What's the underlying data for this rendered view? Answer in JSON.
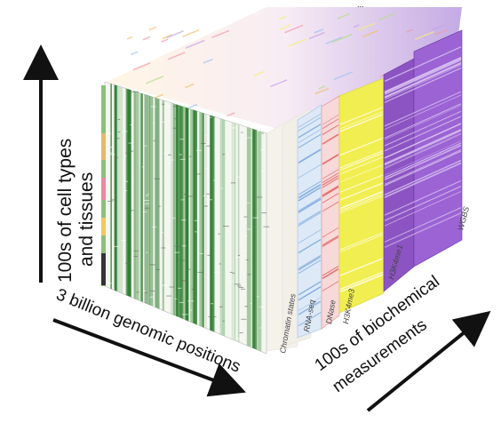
{
  "header": {
    "fragment": "..."
  },
  "axes": {
    "vertical_line1": "100s of cell types",
    "vertical_line2": "and tissues",
    "horizontal": "3 billion genomic positions",
    "depth_line1": "100s of biochemical",
    "depth_line2": "measurements"
  },
  "assay_labels": {
    "chromatin": "Chromatin states",
    "rnaseq": "RNA-seq",
    "dnase": "DNase",
    "h3k4me3": "H3K4me3",
    "h3k4me1": "H3K4me1",
    "wgbs": "WGBS"
  },
  "colors": {
    "chromatin_green": "#2e7d32",
    "rna_blue": "#6f9fd8",
    "dnase_red": "#e06060",
    "h3k4me3_yellow": "#eeea3a",
    "h3k4me1_purple": "#7b3fb0",
    "wgbs_purple": "#8b49c9",
    "arrow": "#111111"
  }
}
